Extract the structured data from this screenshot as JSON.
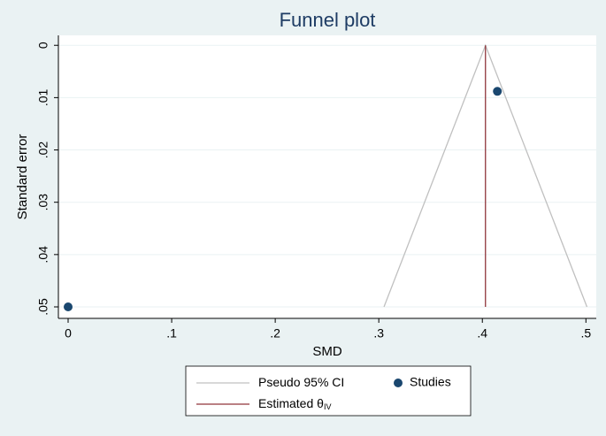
{
  "chart_data": {
    "type": "scatter",
    "title": "Funnel plot",
    "x_label": "SMD",
    "y_label": "Standard error",
    "xlim": [
      -0.0094,
      0.51
    ],
    "ylim": [
      -0.0019,
      0.0522
    ],
    "y_reversed": true,
    "grid": true,
    "xticks": [
      0,
      {
        "value": 0.1,
        "label": ".1"
      },
      {
        "value": 0.2,
        "label": ".2"
      },
      {
        "value": 0.3,
        "label": ".3"
      },
      {
        "value": 0.4,
        "label": ".4"
      },
      {
        "value": 0.5,
        "label": ".5"
      }
    ],
    "yticks": [
      0,
      {
        "value": 0.01,
        "label": ".01"
      },
      {
        "value": 0.02,
        "label": ".02"
      },
      {
        "value": 0.03,
        "label": ".03"
      },
      {
        "value": 0.04,
        "label": ".04"
      },
      {
        "value": 0.05,
        "label": ".05"
      }
    ],
    "series": [
      {
        "name": "Studies",
        "color": "#1a476f",
        "x": [
          0,
          0.4145
        ],
        "values": [
          0.05,
          0.0088
        ]
      }
    ],
    "lines": [
      {
        "name": "Pseudo 95% CI",
        "color": "#c0c0c0",
        "x": [
          0.305,
          0.403,
          0.501
        ],
        "values": [
          0.05,
          0,
          0.05
        ]
      },
      {
        "name": "Estimated θ",
        "name_subscript": "IV",
        "color": "#90353b",
        "x": [
          0.403,
          0.403
        ],
        "values": [
          0,
          0.05
        ]
      }
    ]
  }
}
